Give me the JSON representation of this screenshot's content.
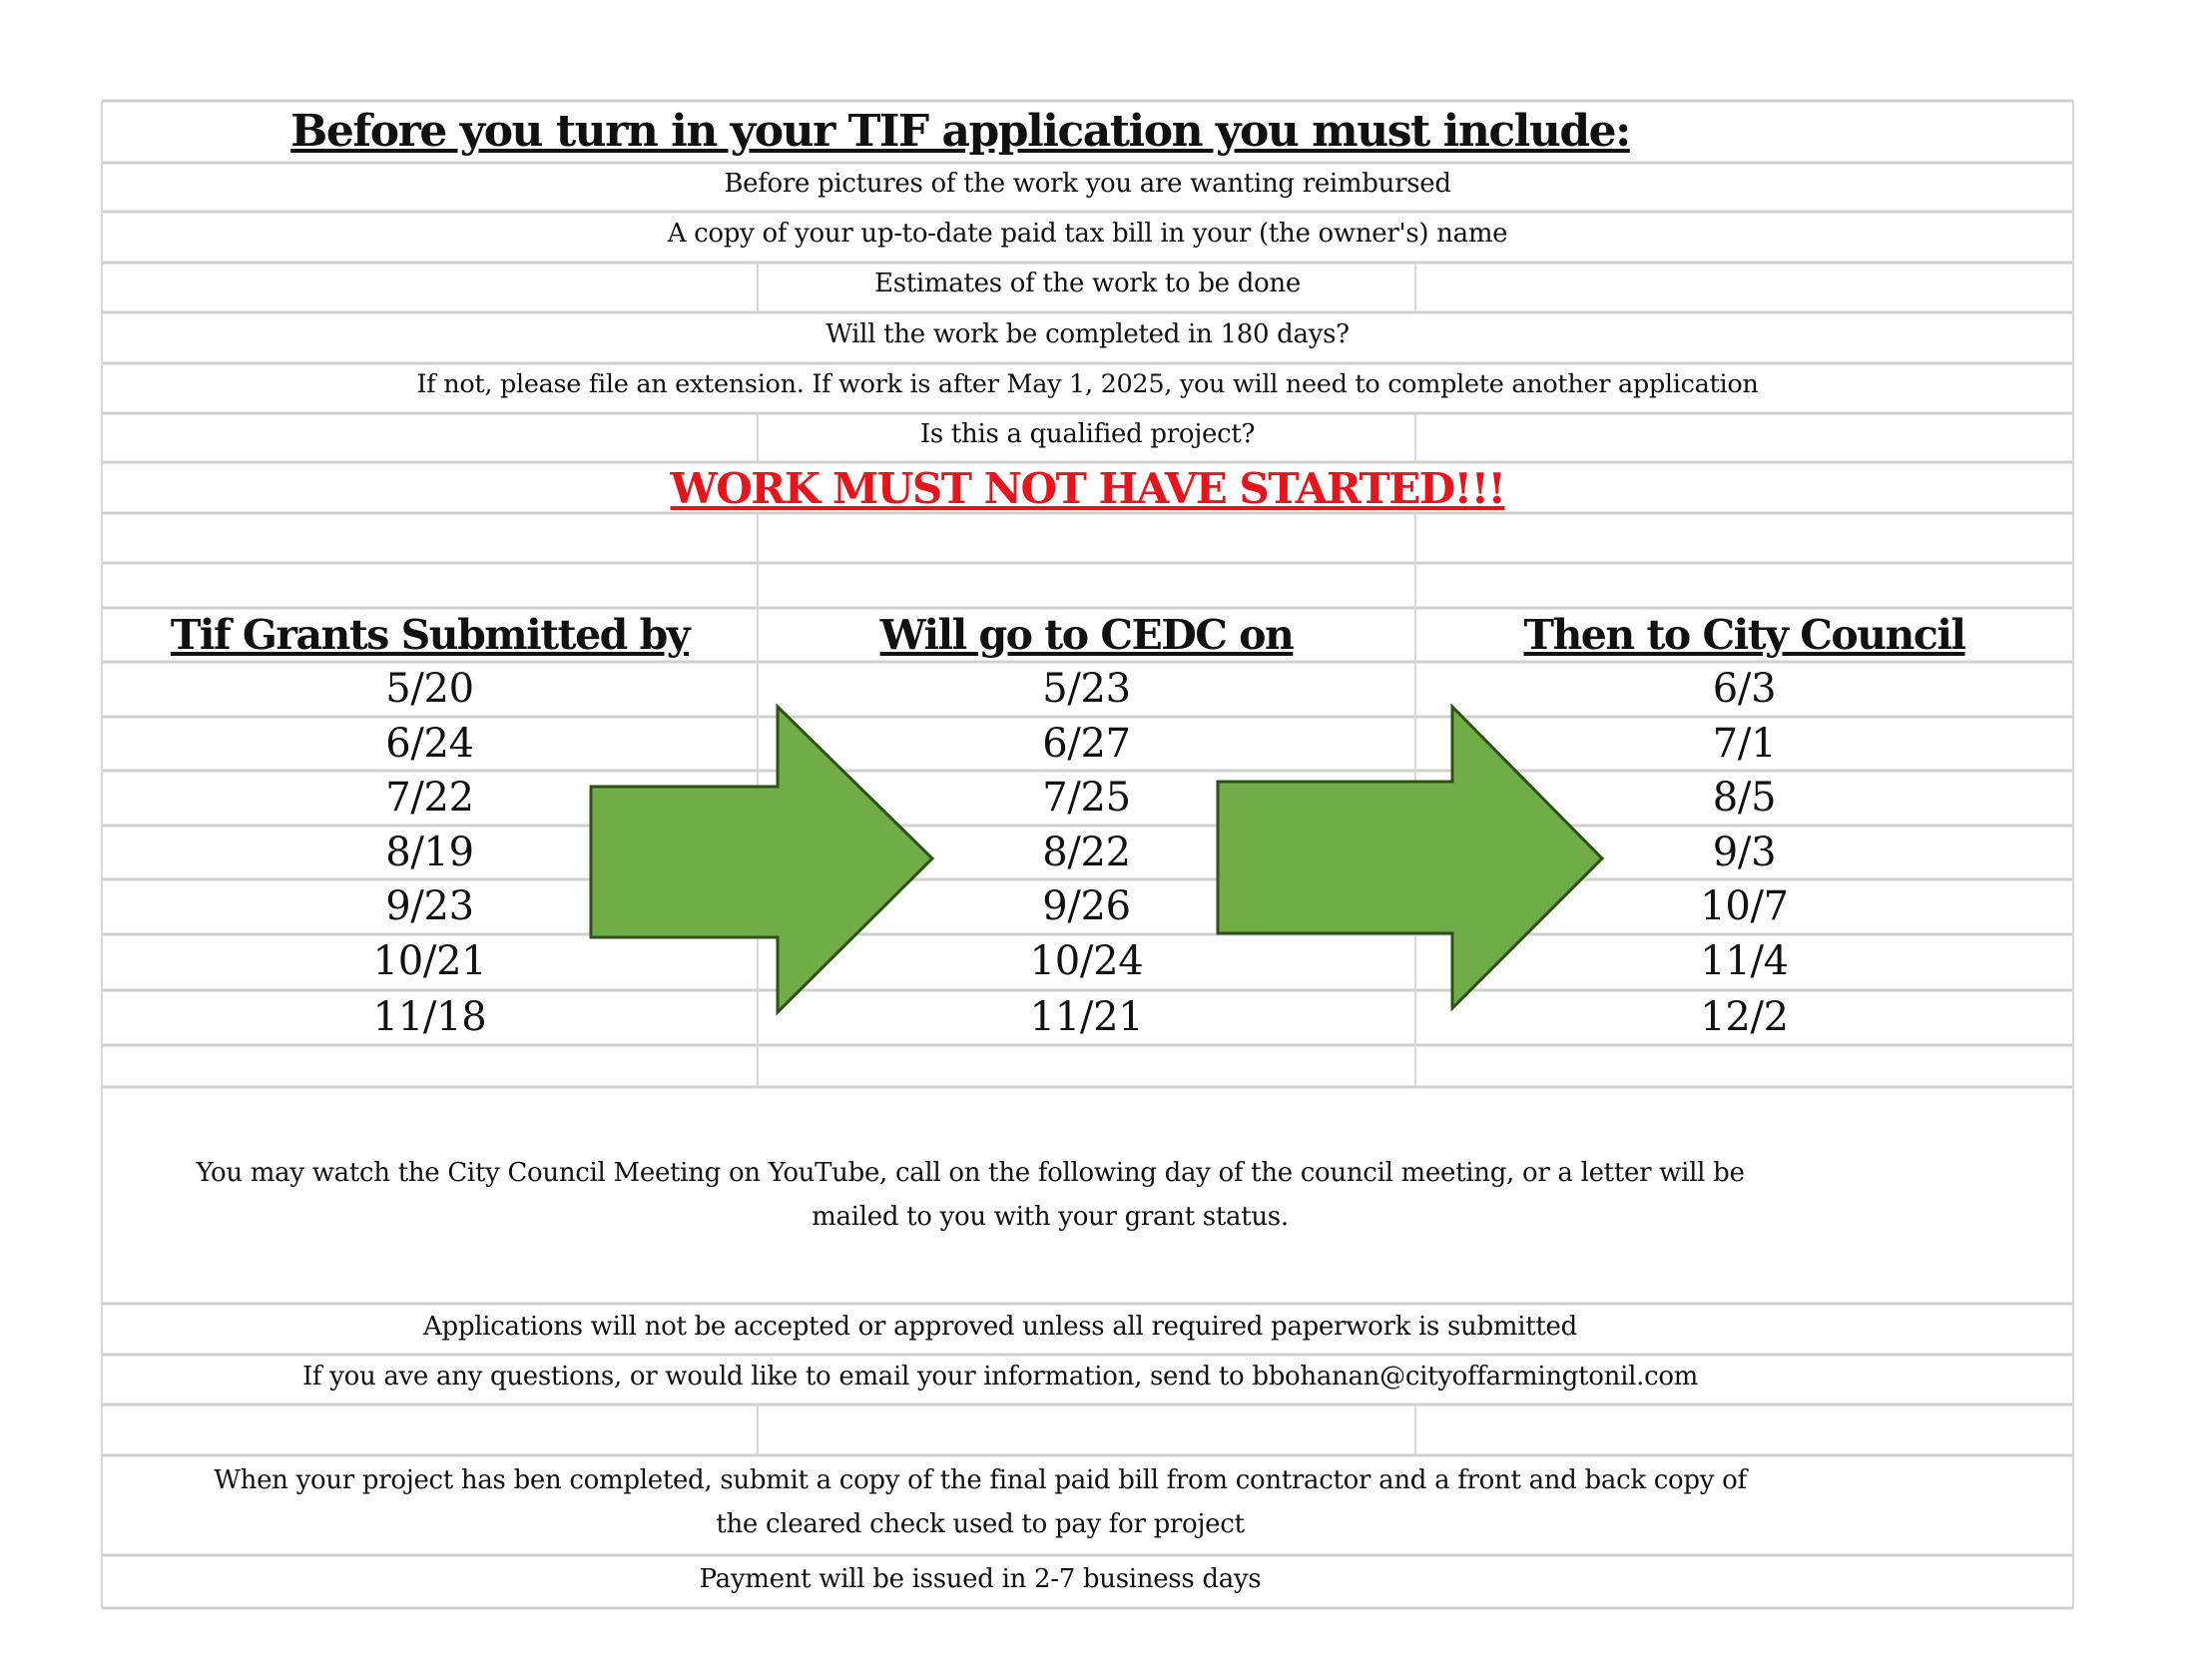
{
  "title": "Before you turn in your TIF application you must include:",
  "requirements": [
    "Before pictures of the work you are wanting reimbursed",
    "A copy of your up-to-date paid tax bill in your (the owner's) name",
    "Estimates of the work to be done",
    "Will the work be completed in 180 days?",
    "If not, please file an extension. If work is after May 1, 2025, you will need to complete another application",
    "Is this a qualified project?"
  ],
  "warning": "WORK MUST NOT HAVE STARTED!!!",
  "warning_color": "#e8141b",
  "arrow_color": "#70ad47",
  "schedule": {
    "headers": [
      "Tif Grants Submitted by",
      "Will go to CEDC on",
      "Then to City Council"
    ],
    "submitted": [
      "5/20",
      "6/24",
      "7/22",
      "8/19",
      "9/23",
      "10/21",
      "11/18"
    ],
    "cedc": [
      "5/23",
      "6/27",
      "7/25",
      "8/22",
      "9/26",
      "10/24",
      "11/21"
    ],
    "council": [
      "6/3",
      "7/1",
      "8/5",
      "9/3",
      "10/7",
      "11/4",
      "12/2"
    ]
  },
  "notes": {
    "youtube_line1": "You may watch the City Council Meeting on YouTube, call on the following day of the council meeting, or a letter will be",
    "youtube_line2": "mailed to you with your grant status.",
    "paperwork": "Applications will not be accepted or approved unless all required paperwork is submitted",
    "email": "If you ave any questions, or would like to email your information, send to bbohanan@cityoffarmingtonil.com",
    "completion_line1": "When your project has ben completed, submit a copy of the final paid bill from contractor and a front and back copy of",
    "completion_line2": "the cleared check used to pay for project",
    "payment": "Payment will be issued in 2-7 business days"
  }
}
